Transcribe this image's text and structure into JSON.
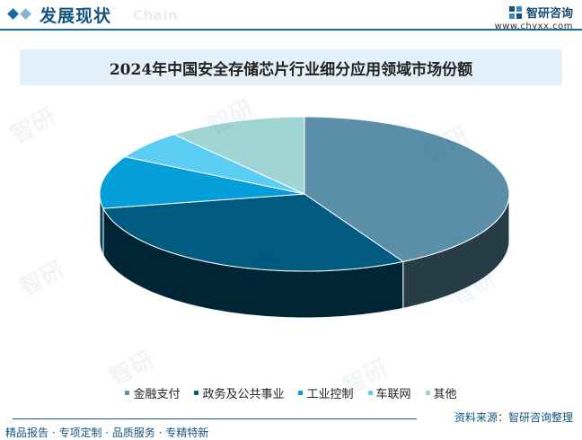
{
  "header": {
    "section_title": "发展现状",
    "section_sub": "Chain",
    "brand_name": "智研咨询",
    "brand_url": "www.chyxx.com"
  },
  "footer": {
    "links": "精品报告 · 专项定制 · 品质服务 · 专精特新",
    "source": "资料来源：智研咨询整理"
  },
  "watermark_text": "智研",
  "colors": {
    "accent": "#1a6a9a",
    "title_bar": "#e4f1fa"
  },
  "chart_data": {
    "type": "pie",
    "title": "2024年中国安全存储芯片行业细分应用领域市场份额",
    "unit": "%",
    "start_angle_deg": 0,
    "direction": "clockwise",
    "legend_position": "bottom",
    "series": [
      {
        "name": "金融支付",
        "value": 42,
        "color": "#5b8fa8"
      },
      {
        "name": "政务及公共事业",
        "value": 30,
        "color": "#015a80"
      },
      {
        "name": "工业控制",
        "value": 11,
        "color": "#049fd9"
      },
      {
        "name": "车联网",
        "value": 6,
        "color": "#5ccdf3"
      },
      {
        "name": "其他",
        "value": 11,
        "color": "#9fd6d4"
      }
    ]
  }
}
